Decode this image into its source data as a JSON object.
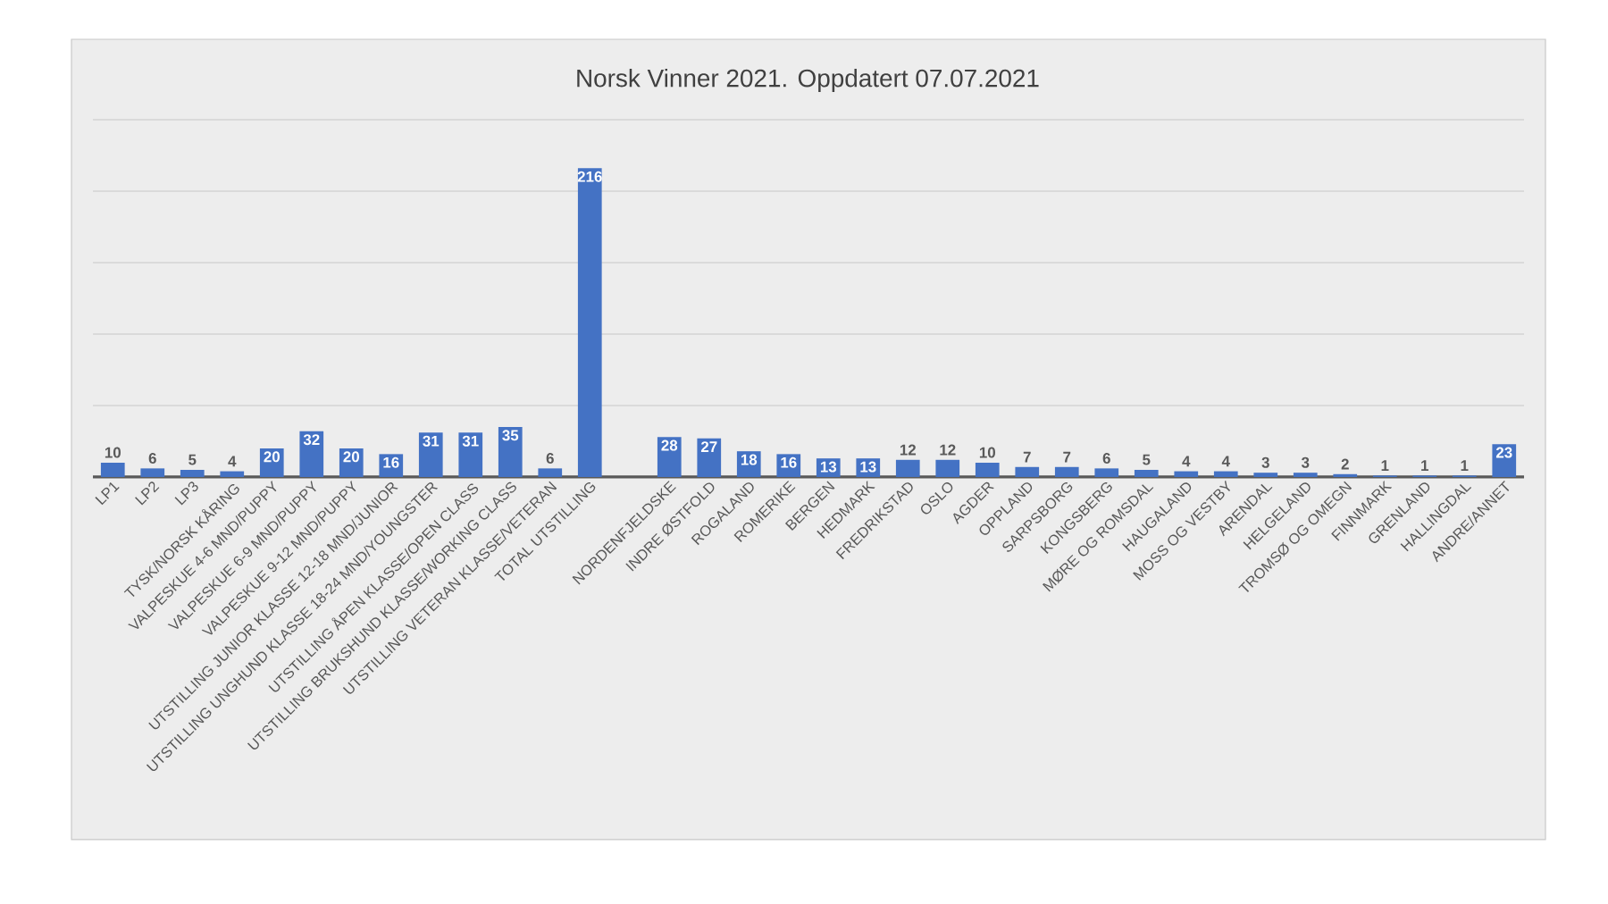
{
  "chart_data": {
    "type": "bar",
    "title": "Norsk Vinner 2021. Oppdatert 07.07.2021",
    "categories": [
      "LP1",
      "LP2",
      "LP3",
      "TYSK/NORSK KÅRING",
      "VALPESKUE 4-6 MND/PUPPY",
      "VALPESKUE 6-9 MND/PUPPY",
      "VALPESKUE 9-12 MND/PUPPY",
      "UTSTILLING JUNIOR KLASSE 12-18 MND/JUNIOR",
      "UTSTILLING UNGHUND KLASSE 18-24 MND/YOUNGSTER",
      "UTSTILLING ÅPEN KLASSE/OPEN CLASS",
      "UTSTILLING BRUKSHUND KLASSE/WORKING CLASS",
      "UTSTILLING VETERAN KLASSE/VETERAN",
      "TOTAL UTSTILLING",
      null,
      "NORDENFJELDSKE",
      "INDRE ØSTFOLD",
      "ROGALAND",
      "ROMERIKE",
      "BERGEN",
      "HEDMARK",
      "FREDRIKSTAD",
      "OSLO",
      "AGDER",
      "OPPLAND",
      "SARPSBORG",
      "KONGSBERG",
      "MØRE OG ROMSDAL",
      "HAUGALAND",
      "MOSS OG VESTBY",
      "ARENDAL",
      "HELGELAND",
      "TROMSØ OG OMEGN",
      "FINNMARK",
      "GRENLAND",
      "HALLINGDAL",
      "ANDRE/ANNET"
    ],
    "values": [
      10,
      6,
      5,
      4,
      20,
      32,
      20,
      16,
      31,
      31,
      35,
      6,
      216,
      null,
      28,
      27,
      18,
      16,
      13,
      13,
      12,
      12,
      10,
      7,
      7,
      6,
      5,
      4,
      4,
      3,
      3,
      2,
      1,
      1,
      1,
      23
    ],
    "color": "#4472c4",
    "ylim": [
      0,
      250
    ],
    "yticks": [
      {
        "value": 0,
        "label": null
      },
      {
        "value": 50,
        "label": null
      },
      {
        "value": 100,
        "label": null
      },
      {
        "value": 150,
        "label": null
      },
      {
        "value": 200,
        "label": null
      },
      {
        "value": 250,
        "label": null
      }
    ],
    "grid": "y",
    "tick_labels": "x",
    "data_labels": true
  }
}
